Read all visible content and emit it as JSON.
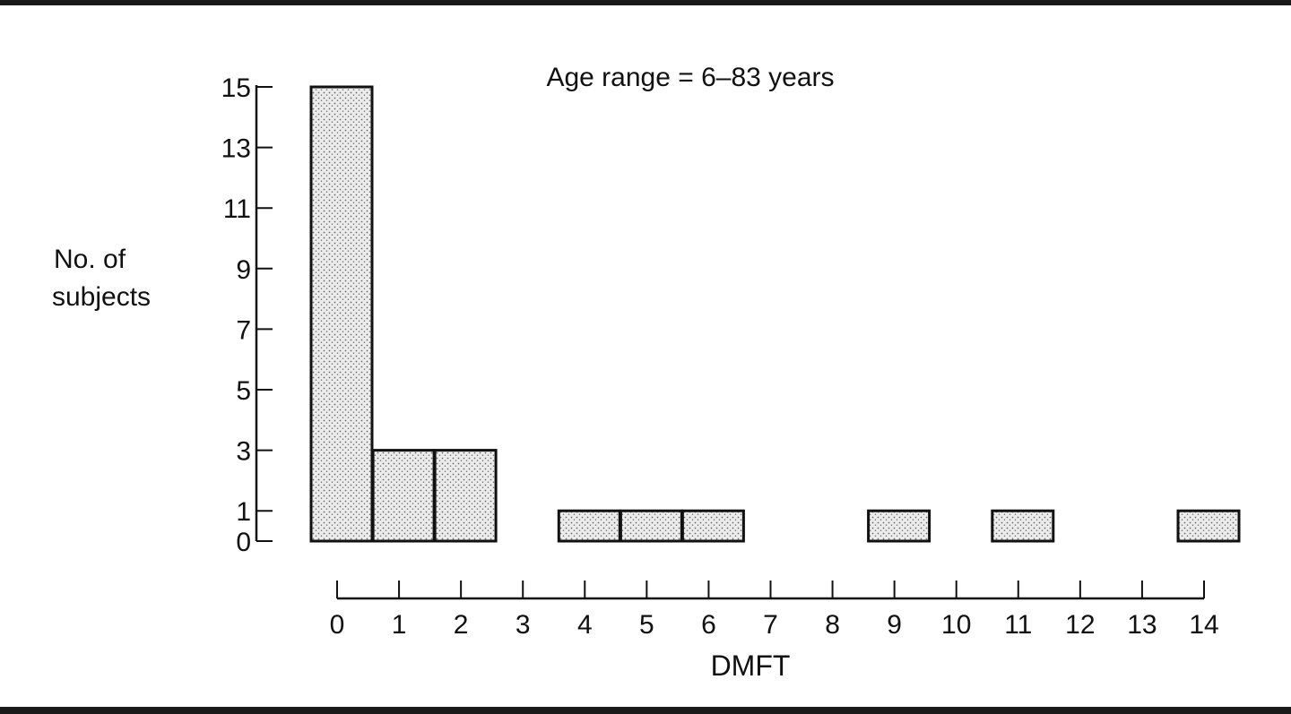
{
  "chart_data": {
    "type": "bar",
    "title": "Age range = 6–83 years",
    "xlabel": "DMFT",
    "ylabel": [
      "No. of",
      "subjects"
    ],
    "x_ticks": [
      "0",
      "1",
      "2",
      "3",
      "4",
      "5",
      "6",
      "7",
      "8",
      "9",
      "10",
      "11",
      "12",
      "13",
      "14"
    ],
    "y_ticks": [
      "0",
      "1",
      "3",
      "5",
      "7",
      "9",
      "11",
      "13",
      "15"
    ],
    "ylim": [
      0,
      15
    ],
    "xlim": [
      0,
      14
    ],
    "grid": false,
    "bars": [
      {
        "x": 0,
        "value": 15
      },
      {
        "x": 1,
        "value": 3
      },
      {
        "x": 2,
        "value": 3
      },
      {
        "x": 4,
        "value": 1
      },
      {
        "x": 5,
        "value": 1
      },
      {
        "x": 6,
        "value": 1
      },
      {
        "x": 9,
        "value": 1
      },
      {
        "x": 11,
        "value": 1
      },
      {
        "x": 14,
        "value": 1
      }
    ]
  }
}
